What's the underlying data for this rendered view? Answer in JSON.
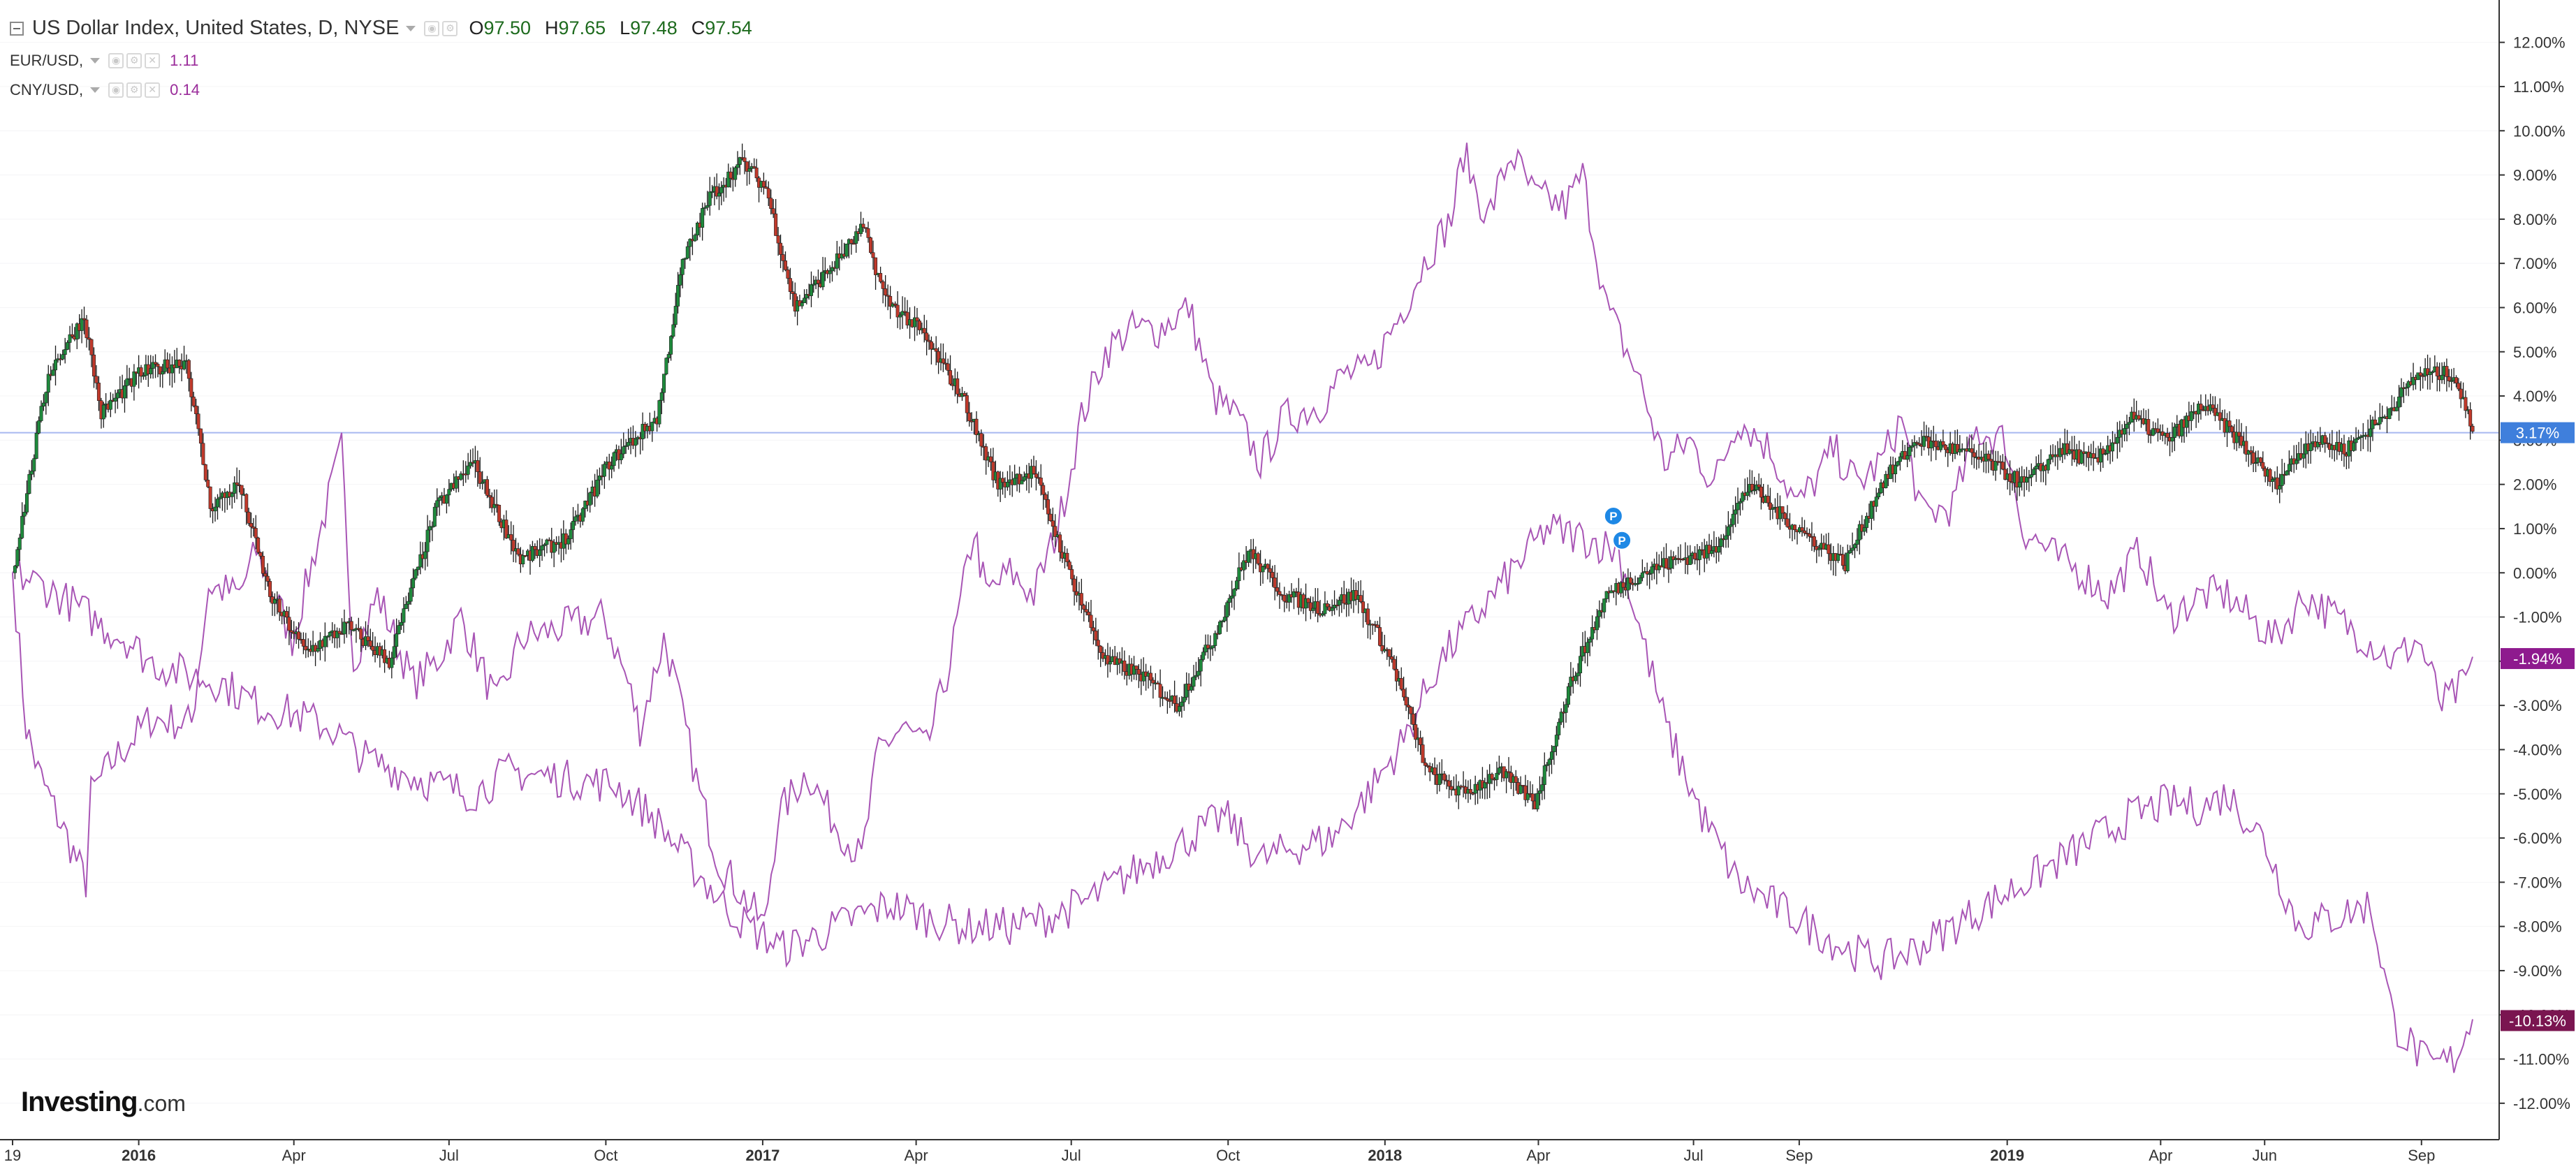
{
  "header": {
    "main_title": "US Dollar Index, United States, D, NYSE",
    "ohlc": [
      {
        "key": "O",
        "value": "97.50"
      },
      {
        "key": "H",
        "value": "97.65"
      },
      {
        "key": "L",
        "value": "97.48"
      },
      {
        "key": "C",
        "value": "97.54"
      }
    ],
    "comparisons": [
      {
        "label": "EUR/USD,",
        "value": "1.11"
      },
      {
        "label": "CNY/USD,",
        "value": "0.14"
      }
    ]
  },
  "logo": {
    "bold": "Investing",
    "suffix": ".com"
  },
  "colors": {
    "up_candle": "#1e8a3c",
    "down_candle": "#c0392b",
    "compare_line": "#a855b5",
    "baseline": "#a8b8f0",
    "badge_dxy": "#3f7fdc",
    "badge_eur": "#8e1a8e",
    "badge_cny": "#7a1550"
  },
  "chart_data": {
    "type": "line",
    "y_axis_unit": "percent change",
    "ylim": [
      -12.5,
      12.5
    ],
    "y_ticks": [
      "12.00%",
      "11.00%",
      "10.00%",
      "9.00%",
      "8.00%",
      "7.00%",
      "6.00%",
      "5.00%",
      "4.00%",
      "3.00%",
      "2.00%",
      "1.00%",
      "0.00%",
      "-1.00%",
      "-2.00%",
      "-3.00%",
      "-4.00%",
      "-5.00%",
      "-6.00%",
      "-7.00%",
      "-8.00%",
      "-9.00%",
      "-10.00%",
      "-11.00%",
      "-12.00%"
    ],
    "x_ticks": [
      {
        "label": "19",
        "bold": false,
        "date": "2015-10-19"
      },
      {
        "label": "2016",
        "bold": true,
        "date": "2016-01-01"
      },
      {
        "label": "Apr",
        "bold": false,
        "date": "2016-04-01"
      },
      {
        "label": "Jul",
        "bold": false,
        "date": "2016-07-01"
      },
      {
        "label": "Oct",
        "bold": false,
        "date": "2016-10-01"
      },
      {
        "label": "2017",
        "bold": true,
        "date": "2017-01-01"
      },
      {
        "label": "Apr",
        "bold": false,
        "date": "2017-04-01"
      },
      {
        "label": "Jul",
        "bold": false,
        "date": "2017-07-01"
      },
      {
        "label": "Oct",
        "bold": false,
        "date": "2017-10-01"
      },
      {
        "label": "2018",
        "bold": true,
        "date": "2018-01-01"
      },
      {
        "label": "Apr",
        "bold": false,
        "date": "2018-04-01"
      },
      {
        "label": "Jul",
        "bold": false,
        "date": "2018-07-01"
      },
      {
        "label": "Sep",
        "bold": false,
        "date": "2018-09-01"
      },
      {
        "label": "2019",
        "bold": true,
        "date": "2019-01-01"
      },
      {
        "label": "Apr",
        "bold": false,
        "date": "2019-04-01"
      },
      {
        "label": "Jun",
        "bold": false,
        "date": "2019-06-01"
      },
      {
        "label": "Sep",
        "bold": false,
        "date": "2019-09-01"
      }
    ],
    "baseline_value": 3.17,
    "markers": [
      {
        "date": "2018-05-15",
        "value": 1.0,
        "label": "P"
      },
      {
        "date": "2018-05-20",
        "value": 0.45,
        "label": "P"
      }
    ],
    "series": [
      {
        "name": "US Dollar Index",
        "style": "candlestick",
        "last_label": "3.17%",
        "x": [
          "2015-10-19",
          "2015-11-09",
          "2015-11-30",
          "2015-12-10",
          "2016-01-01",
          "2016-01-29",
          "2016-02-12",
          "2016-02-29",
          "2016-03-18",
          "2016-04-08",
          "2016-05-02",
          "2016-05-27",
          "2016-06-24",
          "2016-07-15",
          "2016-08-12",
          "2016-09-09",
          "2016-10-03",
          "2016-10-31",
          "2016-11-15",
          "2016-12-01",
          "2016-12-20",
          "2017-01-03",
          "2017-01-20",
          "2017-02-08",
          "2017-03-01",
          "2017-03-14",
          "2017-04-03",
          "2017-04-28",
          "2017-05-19",
          "2017-06-09",
          "2017-06-30",
          "2017-07-21",
          "2017-08-11",
          "2017-09-01",
          "2017-09-22",
          "2017-10-13",
          "2017-11-03",
          "2017-11-24",
          "2017-12-15",
          "2018-01-05",
          "2018-01-26",
          "2018-02-16",
          "2018-03-09",
          "2018-03-30",
          "2018-04-20",
          "2018-05-11",
          "2018-06-01",
          "2018-06-22",
          "2018-07-13",
          "2018-08-03",
          "2018-08-15",
          "2018-09-07",
          "2018-09-28",
          "2018-10-19",
          "2018-11-09",
          "2018-11-30",
          "2018-12-21",
          "2019-01-11",
          "2019-02-01",
          "2019-02-22",
          "2019-03-15",
          "2019-04-05",
          "2019-04-26",
          "2019-05-17",
          "2019-06-07",
          "2019-06-28",
          "2019-07-19",
          "2019-08-09",
          "2019-08-30",
          "2019-09-20",
          "2019-10-01"
        ],
        "values": [
          0.0,
          4.5,
          5.8,
          3.6,
          4.5,
          4.8,
          1.5,
          2.0,
          -0.5,
          -1.8,
          -1.2,
          -2.0,
          1.5,
          2.5,
          0.3,
          0.8,
          2.5,
          3.5,
          7.0,
          8.5,
          9.3,
          8.7,
          6.0,
          6.8,
          7.8,
          6.2,
          5.5,
          4.0,
          2.0,
          2.3,
          0.0,
          -2.0,
          -2.3,
          -3.0,
          -1.5,
          0.5,
          -0.5,
          -0.8,
          -0.5,
          -2.0,
          -4.5,
          -5.0,
          -4.5,
          -5.2,
          -2.5,
          -0.5,
          0.0,
          0.3,
          0.5,
          2.0,
          1.5,
          0.8,
          0.2,
          2.0,
          3.0,
          2.8,
          2.5,
          2.0,
          2.8,
          2.5,
          3.5,
          3.0,
          3.8,
          3.0,
          2.0,
          3.0,
          2.8,
          3.5,
          4.5,
          4.5,
          3.2
        ]
      },
      {
        "name": "EUR/USD",
        "style": "line",
        "last_label": "-1.94%",
        "x": [
          "2015-10-19",
          "2015-10-27",
          "2015-11-03",
          "2015-11-20",
          "2015-12-01",
          "2015-12-04",
          "2015-12-18",
          "2016-01-08",
          "2016-02-01",
          "2016-02-11",
          "2016-02-29",
          "2016-03-10",
          "2016-03-31",
          "2016-04-29",
          "2016-05-06",
          "2016-05-20",
          "2016-06-10",
          "2016-06-24",
          "2016-07-08",
          "2016-07-29",
          "2016-08-12",
          "2016-09-09",
          "2016-09-30",
          "2016-10-14",
          "2016-10-21",
          "2016-11-04",
          "2016-11-09",
          "2016-11-25",
          "2016-12-06",
          "2016-12-15",
          "2017-01-02",
          "2017-01-10",
          "2017-01-27",
          "2017-02-10",
          "2017-02-28",
          "2017-03-10",
          "2017-03-24",
          "2017-04-07",
          "2017-04-21",
          "2017-05-05",
          "2017-05-12",
          "2017-05-26",
          "2017-06-09",
          "2017-06-23",
          "2017-07-07",
          "2017-07-21",
          "2017-08-04",
          "2017-08-21",
          "2017-09-08",
          "2017-09-22",
          "2017-10-06",
          "2017-10-20",
          "2017-11-03",
          "2017-11-24",
          "2017-12-08",
          "2017-12-22",
          "2018-01-12",
          "2018-01-26",
          "2018-02-09",
          "2018-02-16",
          "2018-03-02",
          "2018-03-16",
          "2018-03-30",
          "2018-04-17",
          "2018-04-27",
          "2018-05-11",
          "2018-05-29",
          "2018-06-14",
          "2018-06-29",
          "2018-07-13",
          "2018-07-27",
          "2018-08-15",
          "2018-08-31",
          "2018-09-14",
          "2018-09-21",
          "2018-10-05",
          "2018-10-19",
          "2018-10-31",
          "2018-11-12",
          "2018-11-30",
          "2018-12-14",
          "2018-12-31",
          "2019-01-10",
          "2019-01-31",
          "2019-02-14",
          "2019-03-01",
          "2019-03-20",
          "2019-04-05",
          "2019-04-26",
          "2019-05-10",
          "2019-05-23",
          "2019-06-07",
          "2019-06-25",
          "2019-07-12",
          "2019-07-31",
          "2019-08-16",
          "2019-08-30",
          "2019-09-13",
          "2019-09-27",
          "2019-10-01"
        ],
        "values": [
          0.0,
          -3.5,
          -4.5,
          -6.0,
          -7.0,
          -5.0,
          -4.2,
          -3.3,
          -3.4,
          -0.3,
          -0.5,
          0.5,
          -1.5,
          2.8,
          -2.0,
          -0.5,
          -2.5,
          -2.0,
          -1.0,
          -3.0,
          -1.5,
          -1.2,
          -1.0,
          -2.5,
          -3.5,
          -1.5,
          -2.2,
          -5.0,
          -6.5,
          -7.0,
          -8.0,
          -5.5,
          -4.5,
          -5.5,
          -6.5,
          -4.0,
          -3.5,
          -4.0,
          -2.0,
          1.0,
          -0.5,
          0.0,
          -0.5,
          1.0,
          3.5,
          5.0,
          5.5,
          5.5,
          6.0,
          4.0,
          3.5,
          2.5,
          3.5,
          3.8,
          4.5,
          4.5,
          6.0,
          7.2,
          8.0,
          9.5,
          8.0,
          9.5,
          8.5,
          8.3,
          9.0,
          6.0,
          4.5,
          2.5,
          3.0,
          2.0,
          3.5,
          2.8,
          1.5,
          2.3,
          2.8,
          2.0,
          2.5,
          3.5,
          1.3,
          1.5,
          3.2,
          3.0,
          1.0,
          0.3,
          0.0,
          -0.5,
          0.5,
          -1.0,
          -0.5,
          -0.5,
          -1.0,
          -1.5,
          -0.5,
          -1.0,
          -1.5,
          -2.0,
          -1.5,
          -3.0,
          -2.5,
          -1.9
        ]
      },
      {
        "name": "CNY/USD",
        "style": "line",
        "last_label": "-10.13%",
        "x": [
          "2015-10-19",
          "2015-11-06",
          "2015-11-27",
          "2015-12-10",
          "2015-12-25",
          "2016-01-07",
          "2016-01-29",
          "2016-02-19",
          "2016-03-11",
          "2016-04-01",
          "2016-04-22",
          "2016-05-13",
          "2016-06-03",
          "2016-06-24",
          "2016-07-15",
          "2016-08-05",
          "2016-08-26",
          "2016-09-16",
          "2016-10-07",
          "2016-10-28",
          "2016-11-18",
          "2016-12-09",
          "2016-12-23",
          "2017-01-13",
          "2017-02-03",
          "2017-02-24",
          "2017-03-17",
          "2017-04-07",
          "2017-04-28",
          "2017-05-26",
          "2017-06-16",
          "2017-07-07",
          "2017-07-28",
          "2017-08-18",
          "2017-09-08",
          "2017-09-29",
          "2017-10-20",
          "2017-11-10",
          "2017-12-01",
          "2017-12-22",
          "2018-01-12",
          "2018-02-02",
          "2018-02-23",
          "2018-03-16",
          "2018-04-06",
          "2018-04-27",
          "2018-05-18",
          "2018-06-01",
          "2018-06-15",
          "2018-07-06",
          "2018-07-27",
          "2018-08-17",
          "2018-09-07",
          "2018-09-28",
          "2018-10-19",
          "2018-11-09",
          "2018-11-30",
          "2018-12-21",
          "2019-01-11",
          "2019-02-01",
          "2019-02-22",
          "2019-03-15",
          "2019-04-05",
          "2019-04-26",
          "2019-05-10",
          "2019-05-31",
          "2019-06-21",
          "2019-07-12",
          "2019-08-02",
          "2019-08-16",
          "2019-09-06",
          "2019-09-20",
          "2019-10-01"
        ],
        "values": [
          0.0,
          -0.3,
          -0.8,
          -1.2,
          -1.5,
          -2.0,
          -2.3,
          -2.5,
          -3.0,
          -3.2,
          -3.5,
          -4.2,
          -4.5,
          -4.8,
          -5.0,
          -4.5,
          -4.6,
          -4.7,
          -4.8,
          -5.5,
          -6.5,
          -7.5,
          -8.0,
          -8.5,
          -8.2,
          -7.8,
          -7.5,
          -7.8,
          -8.0,
          -8.0,
          -7.8,
          -7.5,
          -7.0,
          -6.5,
          -6.0,
          -5.5,
          -6.5,
          -6.2,
          -6.0,
          -5.0,
          -3.8,
          -2.0,
          -1.0,
          0.0,
          1.0,
          0.8,
          0.5,
          -1.5,
          -3.5,
          -5.5,
          -7.0,
          -7.5,
          -8.0,
          -8.5,
          -8.8,
          -8.5,
          -8.0,
          -7.5,
          -7.0,
          -6.5,
          -6.0,
          -5.5,
          -5.2,
          -5.3,
          -5.0,
          -6.0,
          -8.0,
          -7.8,
          -7.5,
          -10.2,
          -11.2,
          -11.0,
          -10.1
        ]
      }
    ]
  }
}
